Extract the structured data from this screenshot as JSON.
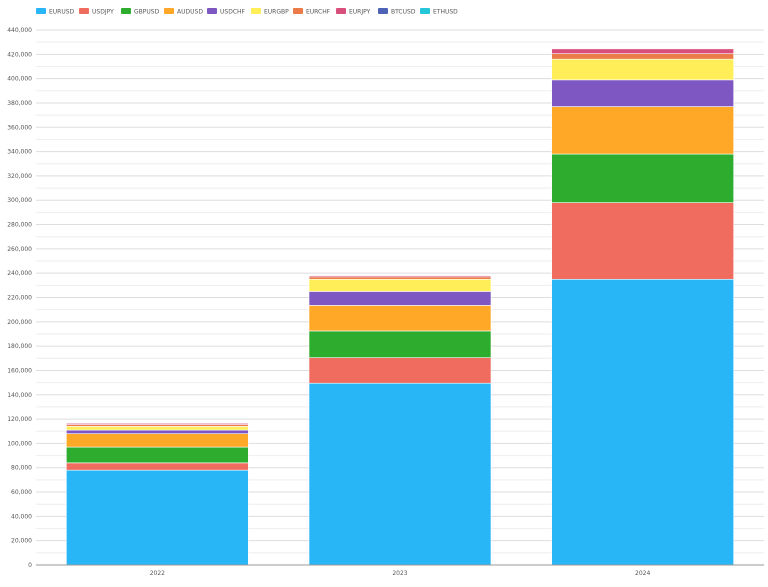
{
  "chart_data": {
    "type": "bar",
    "stacked": true,
    "categories": [
      "2022",
      "2023",
      "2024"
    ],
    "series": [
      {
        "name": "EURUSD",
        "color": "#29b6f6",
        "values": [
          78000,
          149500,
          235000
        ]
      },
      {
        "name": "USDJPY",
        "color": "#ef6c5f",
        "values": [
          6000,
          21000,
          63000
        ]
      },
      {
        "name": "GBPUSD",
        "color": "#2eac2e",
        "values": [
          13000,
          22000,
          40000
        ]
      },
      {
        "name": "AUDUSD",
        "color": "#ffa726",
        "values": [
          11000,
          21000,
          39000
        ]
      },
      {
        "name": "USDCHF",
        "color": "#7e57c2",
        "values": [
          3000,
          11500,
          22000
        ]
      },
      {
        "name": "EURGBP",
        "color": "#ffee58",
        "values": [
          3000,
          10000,
          17000
        ]
      },
      {
        "name": "EURCHF",
        "color": "#ec7b4a",
        "values": [
          1500,
          2000,
          4500
        ]
      },
      {
        "name": "EURJPY",
        "color": "#d84f7b",
        "values": [
          1000,
          1000,
          4000
        ]
      },
      {
        "name": "BTCUSD",
        "color": "#4e63b5",
        "values": [
          0,
          0,
          0
        ]
      },
      {
        "name": "ETHUSD",
        "color": "#26c6da",
        "values": [
          0,
          0,
          0
        ]
      }
    ],
    "ylim": [
      0,
      440000
    ],
    "ytick_step": 20000,
    "grid": true,
    "legend_position": "top-left",
    "title": "",
    "xlabel": "",
    "ylabel": ""
  }
}
